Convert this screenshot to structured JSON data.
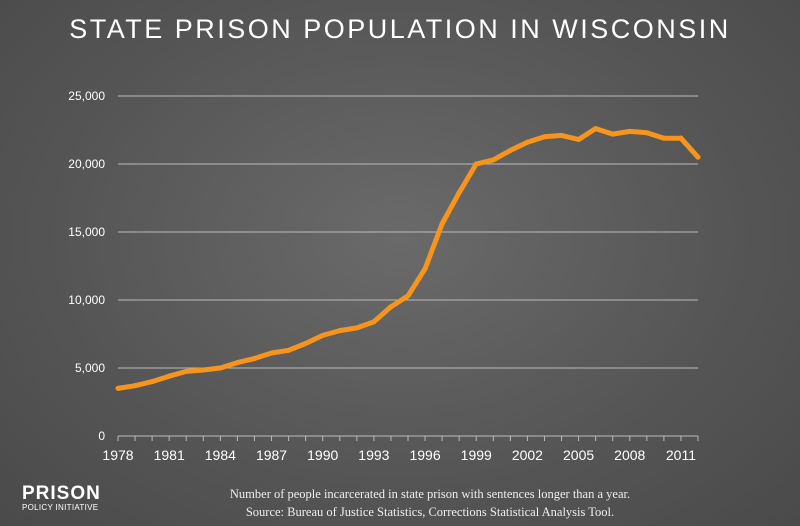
{
  "title": "STATE PRISON POPULATION IN WISCONSIN",
  "chart_data": {
    "type": "line",
    "title": "STATE PRISON POPULATION IN WISCONSIN",
    "x": [
      1978,
      1979,
      1980,
      1981,
      1982,
      1983,
      1984,
      1985,
      1986,
      1987,
      1988,
      1989,
      1990,
      1991,
      1992,
      1993,
      1994,
      1995,
      1996,
      1997,
      1998,
      1999,
      2000,
      2001,
      2002,
      2003,
      2004,
      2005,
      2006,
      2007,
      2008,
      2009,
      2010,
      2011,
      2012
    ],
    "values": [
      3500,
      3700,
      4000,
      4400,
      4750,
      4850,
      5000,
      5400,
      5700,
      6100,
      6300,
      6800,
      7400,
      7750,
      7950,
      8400,
      9500,
      10300,
      12300,
      15600,
      17900,
      20000,
      20300,
      21000,
      21600,
      22000,
      22100,
      21800,
      22600,
      22200,
      22400,
      22300,
      21900,
      21900,
      20500
    ],
    "ylim": [
      0,
      25000
    ],
    "yticks": [
      "0",
      "5,000",
      "10,000",
      "15,000",
      "20,000",
      "25,000"
    ],
    "xticks": [
      "1978",
      "1981",
      "1984",
      "1987",
      "1990",
      "1993",
      "1996",
      "1999",
      "2002",
      "2005",
      "2008",
      "2011"
    ],
    "grid": true,
    "line_color": "#f7941d"
  },
  "footer": {
    "note": "Number of people incarcerated in state prison with sentences longer than a year.",
    "source": "Source: Bureau of Justice Statistics, Corrections Statistical Analysis Tool."
  },
  "logo": {
    "line1": "PRISON",
    "line2": "POLICY INITIATIVE"
  }
}
